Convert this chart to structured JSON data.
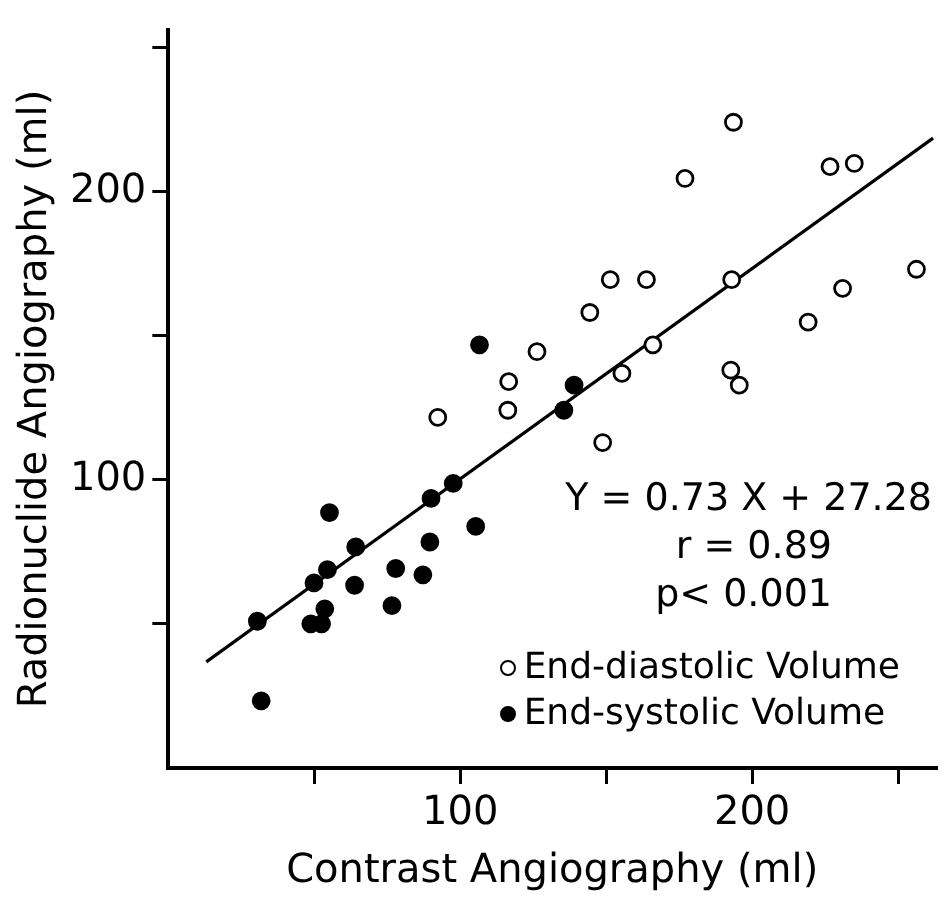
{
  "chart_data": {
    "type": "scatter",
    "xlabel": "Contrast Angiography (ml)",
    "ylabel": "Radionuclide Angiography (ml)",
    "xlim": [
      0,
      263
    ],
    "ylim": [
      0,
      256
    ],
    "xticks": [
      {
        "value": 50,
        "label": null
      },
      100,
      {
        "value": 150,
        "label": null
      },
      200,
      {
        "value": 250,
        "label": null
      }
    ],
    "yticks": [
      {
        "value": 50,
        "label": null
      },
      100,
      {
        "value": 150,
        "label": null
      },
      200,
      {
        "value": 250,
        "label": null
      }
    ],
    "grid": false,
    "legend": "bottom right",
    "marker": "circle",
    "annotations": [
      "Y = 0.73 X + 27.28",
      "r = 0.89",
      "p< 0.001"
    ],
    "series": [
      {
        "name": "End-diastolic Volume",
        "color": "#000000",
        "x": [
          193.6,
          177,
          226.7,
          235,
          256.3,
          151.4,
          163.8,
          193,
          231,
          144.4,
          219.2,
          166,
          126.3,
          116.6,
          155.4,
          192.7,
          195.6,
          116.3,
          92.3,
          148.8
        ],
        "values": [
          224,
          204.5,
          208.6,
          209.7,
          173,
          169.4,
          169.4,
          169.4,
          166.4,
          158,
          154.7,
          146.8,
          144.4,
          134,
          136.9,
          138,
          132.8,
          124.1,
          121.6,
          112.9
        ]
      },
      {
        "name": "End-systolic Volume",
        "color": "#000000",
        "x": [
          106.6,
          139,
          135.5,
          97.6,
          90,
          55.2,
          64.2,
          105.3,
          89.6,
          54.5,
          49.9,
          63.8,
          77.9,
          87.2,
          76.6,
          53.6,
          48.8,
          52.5,
          30.5,
          31.8
        ],
        "values": [
          146.8,
          132.8,
          124.1,
          98.7,
          93.5,
          88.6,
          76.7,
          83.8,
          78.4,
          68.8,
          64.2,
          63.4,
          69.2,
          67,
          56.3,
          55.2,
          50,
          50,
          50.9,
          23.3
        ]
      },
      {
        "type": "line",
        "color": "#000000",
        "marker": "none",
        "line_style": "solid",
        "x": [
          13,
          262
        ],
        "values": [
          36.8,
          218.5
        ]
      }
    ]
  }
}
